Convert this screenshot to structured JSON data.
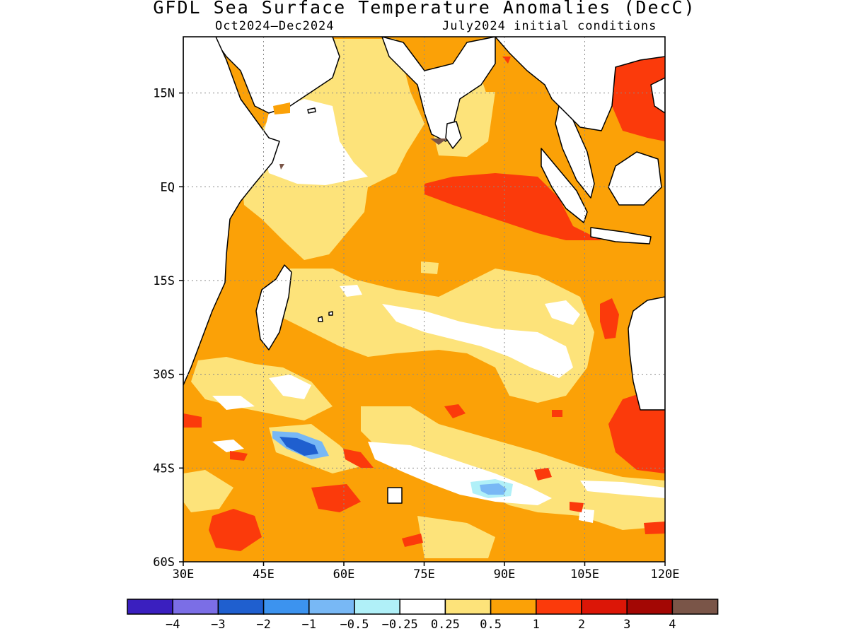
{
  "title": "GFDL Sea Surface Temperature Anomalies (DecC)",
  "subtitle_left": "Oct2024–Dec2024",
  "subtitle_right": "July2024 initial conditions",
  "map": {
    "lon_range": [
      30,
      120
    ],
    "lat_range": [
      -60,
      24
    ],
    "lon_ticks": [
      "30E",
      "45E",
      "60E",
      "75E",
      "90E",
      "105E",
      "120E"
    ],
    "lat_ticks": [
      "15N",
      "EQ",
      "15S",
      "30S",
      "45S",
      "60S"
    ],
    "grid": true
  },
  "colorbar": {
    "colors": [
      "#3a1fbf",
      "#7b6ee6",
      "#1f5fcf",
      "#3c93ef",
      "#78b8f5",
      "#b0f0f8",
      "#ffffff",
      "#fde37a",
      "#fba107",
      "#fb3a0b",
      "#dc1607",
      "#a30704",
      "#7a5548"
    ],
    "labels": [
      "−4",
      "−3",
      "−2",
      "−1",
      "−0.5",
      "−0.25",
      "0.25",
      "0.5",
      "1",
      "2",
      "3",
      "4"
    ]
  }
}
